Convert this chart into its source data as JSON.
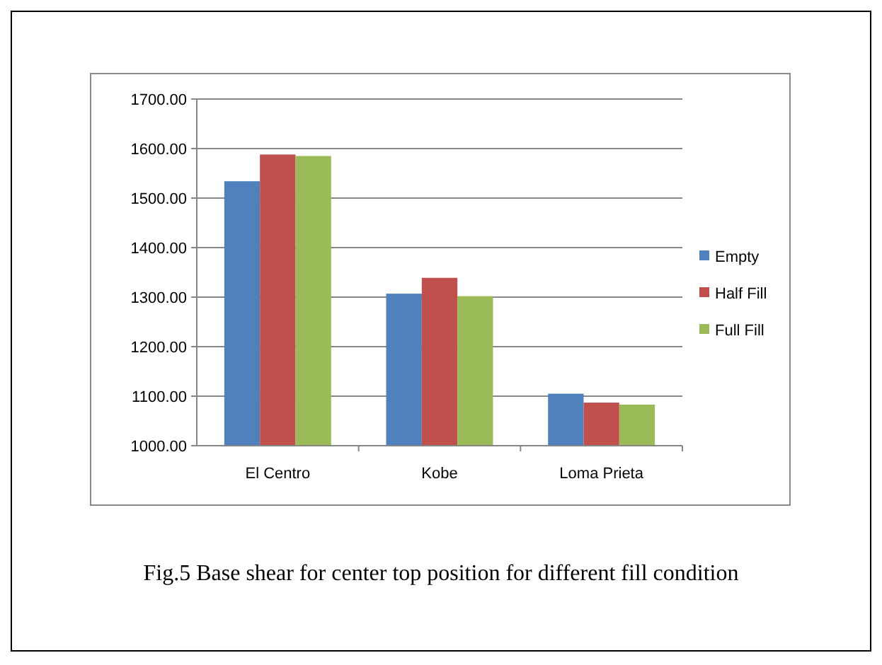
{
  "chart_data": {
    "type": "bar",
    "categories": [
      "El Centro",
      "Kobe",
      "Loma Prieta"
    ],
    "series": [
      {
        "name": "Empty",
        "color": "#4f81bd",
        "values": [
          1534,
          1307,
          1105
        ]
      },
      {
        "name": "Half Fill",
        "color": "#c0504d",
        "values": [
          1588,
          1339,
          1087
        ]
      },
      {
        "name": "Full Fill",
        "color": "#9bbb59",
        "values": [
          1585,
          1302,
          1083
        ]
      }
    ],
    "ylim": [
      1000,
      1700
    ],
    "yticks": [
      {
        "value": 1000,
        "label": "1000.00"
      },
      {
        "value": 1100,
        "label": "1100.00"
      },
      {
        "value": 1200,
        "label": "1200.00"
      },
      {
        "value": 1300,
        "label": "1300.00"
      },
      {
        "value": 1400,
        "label": "1400.00"
      },
      {
        "value": 1500,
        "label": "1500.00"
      },
      {
        "value": 1600,
        "label": "1600.00"
      },
      {
        "value": 1700,
        "label": "1700.00"
      }
    ],
    "grid": "y",
    "legend": "right",
    "annotations": [
      "Fig.5 Base shear for center top position for different fill condition"
    ]
  }
}
